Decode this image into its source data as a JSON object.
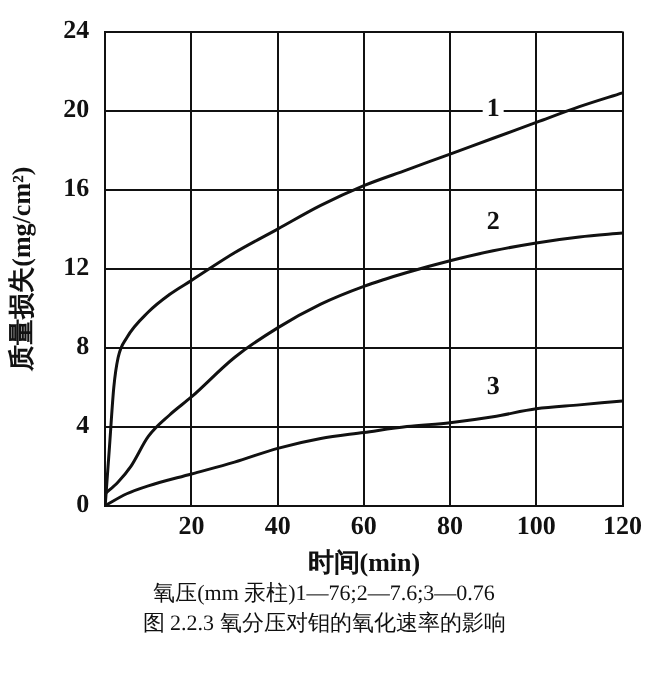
{
  "chart_data": {
    "type": "line",
    "xlabel": "时间(min)",
    "ylabel": "质量损失(mg/cm²)",
    "annotations": [
      "氧压(mm 汞柱)1—76;2—7.6;3—0.76",
      "图 2.2.3  氧分压对钼的氧化速率的影响"
    ],
    "xlim": [
      0,
      120
    ],
    "xticks": [
      20,
      40,
      60,
      80,
      100,
      120
    ],
    "ylim": [
      0,
      24
    ],
    "yticks": [
      0,
      4,
      8,
      12,
      16,
      20,
      24
    ],
    "grid": true,
    "legend": false,
    "marker": "none",
    "line_style": "solid",
    "series": [
      {
        "name": "1",
        "color": "#111111",
        "x": [
          0,
          1,
          2,
          3,
          5,
          10,
          15,
          20,
          30,
          40,
          50,
          60,
          70,
          80,
          90,
          100,
          110,
          120
        ],
        "values": [
          0,
          3,
          6,
          7.5,
          8.5,
          9.8,
          10.7,
          11.4,
          12.8,
          14,
          15.2,
          16.2,
          17,
          17.8,
          18.6,
          19.4,
          20.2,
          20.9
        ]
      },
      {
        "name": "2",
        "color": "#111111",
        "x": [
          0,
          3,
          6,
          10,
          15,
          20,
          30,
          40,
          50,
          60,
          70,
          80,
          90,
          100,
          110,
          120
        ],
        "values": [
          0.6,
          1.2,
          2,
          3.5,
          4.6,
          5.5,
          7.5,
          9,
          10.2,
          11.1,
          11.8,
          12.4,
          12.9,
          13.3,
          13.6,
          13.8
        ]
      },
      {
        "name": "3",
        "color": "#111111",
        "x": [
          0,
          5,
          10,
          20,
          30,
          40,
          50,
          60,
          70,
          80,
          90,
          100,
          110,
          120
        ],
        "values": [
          0,
          0.6,
          1,
          1.6,
          2.2,
          2.9,
          3.4,
          3.7,
          4,
          4.2,
          4.5,
          4.9,
          5.1,
          5.3
        ]
      }
    ]
  }
}
